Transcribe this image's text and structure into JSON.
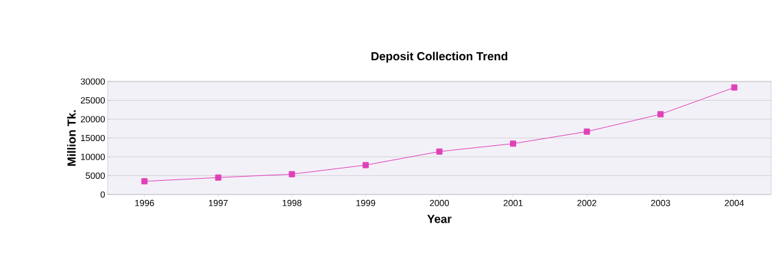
{
  "chart_data": {
    "type": "line",
    "title": "Deposit Collection Trend",
    "xlabel": "Year",
    "ylabel": "Million Tk.",
    "categories": [
      "1996",
      "1997",
      "1998",
      "1999",
      "2000",
      "2001",
      "2002",
      "2003",
      "2004"
    ],
    "values": [
      3500,
      4500,
      5400,
      7800,
      11400,
      13500,
      16700,
      21300,
      28400
    ],
    "color": "#e040b8",
    "marker": "square",
    "line_style": "solid",
    "grid": "y",
    "ylim": [
      0,
      30000
    ],
    "yticks": [
      0,
      5000,
      10000,
      15000,
      20000,
      25000,
      30000
    ]
  }
}
